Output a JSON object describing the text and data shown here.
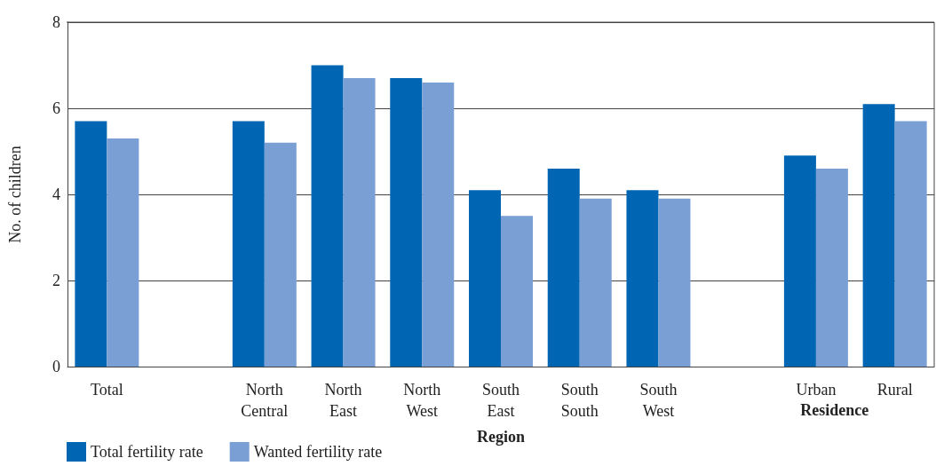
{
  "chart_data": {
    "type": "bar",
    "ylabel": "No. of children",
    "xlabel": "Region",
    "annotations": [
      "Residence"
    ],
    "categories": [
      "Total",
      null,
      "North Central",
      "North East",
      "North West",
      "South East",
      "South South",
      "South West",
      null,
      "Urban",
      "Rural"
    ],
    "series": [
      {
        "name": "Total fertility rate",
        "color": "#0066b3",
        "values": [
          5.7,
          null,
          5.7,
          7.0,
          6.7,
          4.1,
          4.6,
          4.1,
          null,
          4.9,
          6.1
        ]
      },
      {
        "name": "Wanted fertility rate",
        "color": "#7a9fd4",
        "values": [
          5.3,
          null,
          5.2,
          6.7,
          6.6,
          3.5,
          3.9,
          3.9,
          null,
          4.6,
          5.7
        ]
      }
    ],
    "ylim": [
      0,
      8
    ],
    "yticks": [
      0,
      2,
      4,
      6,
      8
    ],
    "grid": "y",
    "legend": "bottom left"
  }
}
